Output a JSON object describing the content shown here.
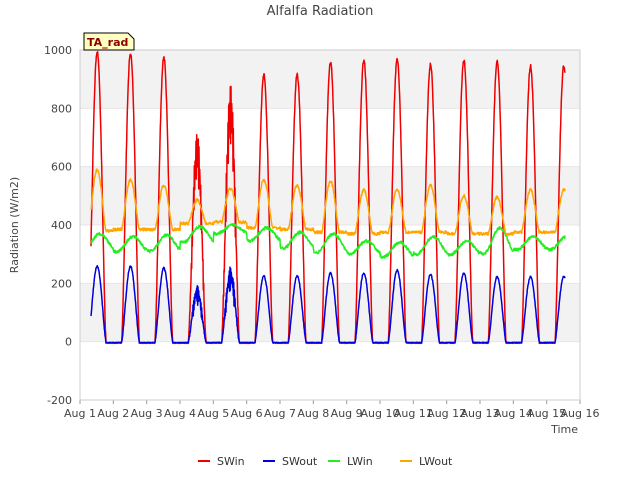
{
  "chart_data": {
    "type": "line",
    "title": "Alfalfa Radiation",
    "xlabel": "Time",
    "ylabel": "Radiation (W/m2)",
    "xlim": [
      0,
      15
    ],
    "ylim": [
      -200,
      1000
    ],
    "yticks": [
      -200,
      0,
      200,
      400,
      600,
      800,
      1000
    ],
    "xtick_labels": [
      "Aug 1",
      "Aug 2",
      "Aug 3",
      "Aug 4",
      "Aug 5",
      "Aug 6",
      "Aug 7",
      "Aug 8",
      "Aug 9",
      "Aug 10",
      "Aug 11",
      "Aug 12",
      "Aug 13",
      "Aug 14",
      "Aug 15",
      "Aug 16"
    ],
    "annotation": "TA_rad",
    "legend_position": "bottom-center",
    "series": [
      {
        "name": "SWin",
        "color": "#ee0000",
        "daily_peak": [
          995,
          990,
          975,
          720,
          880,
          915,
          915,
          960,
          965,
          970,
          950,
          965,
          960,
          945
        ],
        "night_value": -5
      },
      {
        "name": "SWout",
        "color": "#0000dd",
        "daily_peak": [
          258,
          258,
          252,
          190,
          255,
          225,
          225,
          235,
          235,
          245,
          230,
          235,
          222,
          222
        ],
        "night_value": -3
      },
      {
        "name": "LWin",
        "color": "#22ee22",
        "daily_max": [
          370,
          360,
          365,
          395,
          400,
          390,
          375,
          370,
          345,
          340,
          360,
          345,
          390,
          360
        ],
        "daily_min": [
          315,
          308,
          310,
          340,
          370,
          345,
          320,
          305,
          300,
          290,
          300,
          298,
          300,
          315
        ]
      },
      {
        "name": "LWout",
        "color": "#ffa500",
        "daily_peak": [
          590,
          555,
          535,
          485,
          525,
          555,
          535,
          550,
          520,
          520,
          535,
          500,
          495,
          520
        ],
        "night_value": [
          380,
          385,
          385,
          405,
          410,
          390,
          385,
          375,
          370,
          375,
          375,
          370,
          370,
          375
        ]
      }
    ]
  }
}
